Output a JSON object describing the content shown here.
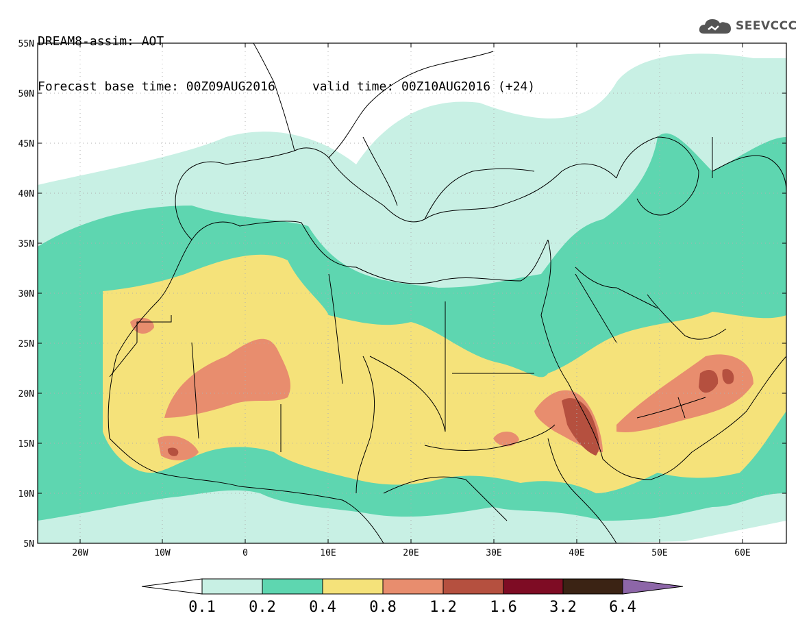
{
  "header": {
    "title_line1": "DREAM8-assim: AOT",
    "base_time_label": "Forecast base time: 00Z09AUG2016",
    "valid_time_label": "valid time: 00Z10AUG2016 (+24)"
  },
  "logo": {
    "text": "SEEVCCC",
    "icon": "cloud-icon"
  },
  "map": {
    "lat_labels": [
      "55N",
      "50N",
      "45N",
      "40N",
      "35N",
      "30N",
      "25N",
      "20N",
      "15N",
      "10N",
      "5N"
    ],
    "lon_labels": [
      "20W",
      "10W",
      "0",
      "10E",
      "20E",
      "30E",
      "40E",
      "50E",
      "60E"
    ],
    "lon_range": [
      -25,
      65
    ],
    "lat_range": [
      5,
      55
    ],
    "grid": "dotted"
  },
  "colorbar": {
    "labels": [
      "0.1",
      "0.2",
      "0.4",
      "0.8",
      "1.2",
      "1.6",
      "3.2",
      "6.4"
    ],
    "colors": [
      "#ffffff",
      "#c8f0e4",
      "#5ed6b0",
      "#f5e27a",
      "#e88d6e",
      "#b5503f",
      "#7e0c24",
      "#3b2314",
      "#8d66a8"
    ]
  },
  "colors": {
    "very_low": "#c8f0e4",
    "low": "#5ed6b0",
    "medium": "#f5e27a",
    "high": "#e88d6e",
    "very_high": "#b5503f"
  }
}
